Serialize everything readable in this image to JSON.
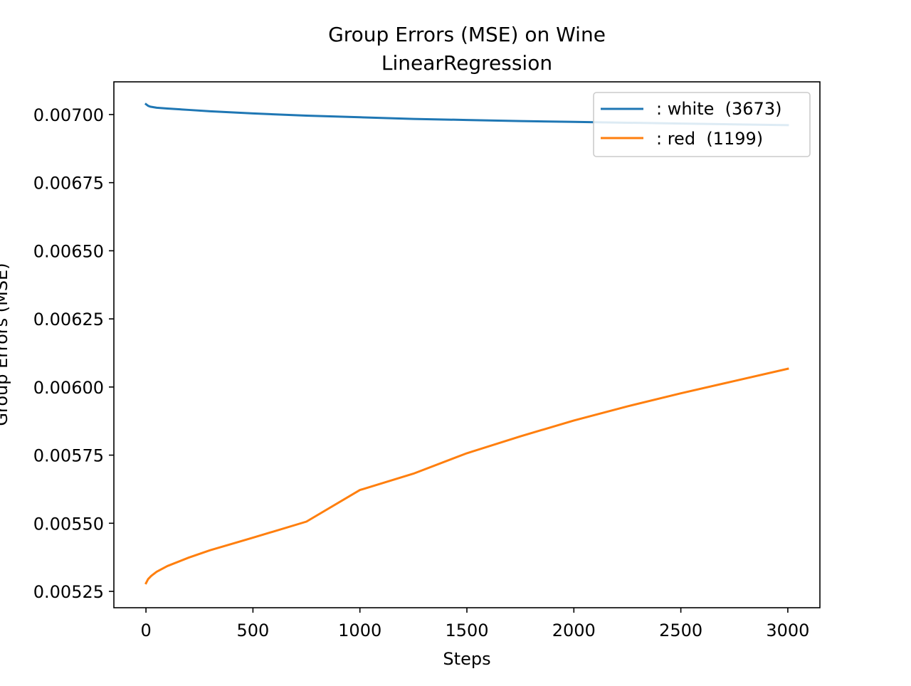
{
  "chart_data": {
    "type": "line",
    "title": "Group Errors (MSE) on Wine",
    "subtitle": "LinearRegression",
    "xlabel": "Steps",
    "ylabel": "Group Errors (MSE)",
    "xlim": [
      -150,
      3150
    ],
    "ylim": [
      0.00519,
      0.00712
    ],
    "xticks": [
      0,
      500,
      1000,
      1500,
      2000,
      2500,
      3000
    ],
    "xtick_labels": [
      "0",
      "500",
      "1000",
      "1500",
      "2000",
      "2500",
      "3000"
    ],
    "yticks": [
      0.00525,
      0.0055,
      0.00575,
      0.006,
      0.00625,
      0.0065,
      0.00675,
      0.007
    ],
    "ytick_labels": [
      "0.00525",
      "0.00550",
      "0.00575",
      "0.00600",
      "0.00625",
      "0.00650",
      "0.00675",
      "0.00700"
    ],
    "grid": false,
    "legend_position": "top-right",
    "series": [
      {
        "name": ": white  (3673)",
        "color": "#1f77b4",
        "x": [
          0,
          10,
          20,
          50,
          100,
          200,
          300,
          500,
          750,
          1000,
          1250,
          1500,
          1750,
          2000,
          2250,
          2500,
          2750,
          3000
        ],
        "y": [
          0.007038,
          0.007032,
          0.007029,
          0.007025,
          0.007022,
          0.007017,
          0.007012,
          0.007004,
          0.006996,
          0.00699,
          0.006984,
          0.00698,
          0.006976,
          0.006973,
          0.00697,
          0.006967,
          0.006964,
          0.006961
        ]
      },
      {
        "name": ": red  (1199)",
        "color": "#ff7f0e",
        "x": [
          0,
          10,
          25,
          50,
          100,
          200,
          300,
          500,
          750,
          1000,
          1250,
          1500,
          1750,
          2000,
          2250,
          2500,
          2750,
          3000
        ],
        "y": [
          0.00528,
          0.005295,
          0.005307,
          0.005322,
          0.005343,
          0.005374,
          0.005401,
          0.005447,
          0.005506,
          0.005622,
          0.005682,
          0.005757,
          0.005819,
          0.005877,
          0.005929,
          0.005977,
          0.006022,
          0.006067
        ]
      }
    ]
  }
}
